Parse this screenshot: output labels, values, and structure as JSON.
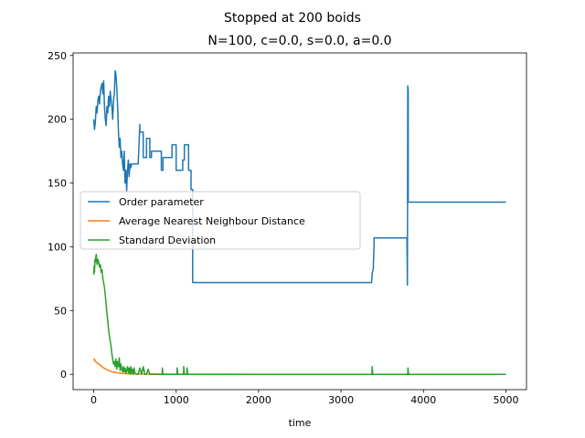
{
  "chart_data": {
    "type": "line",
    "title": "Stopped at 200 boids",
    "subtitle": "N=100, c=0.0, s=0.0, a=0.0",
    "xlabel": "time",
    "ylabel": "",
    "xlim": [
      -250,
      5250
    ],
    "ylim": [
      -12,
      252
    ],
    "xticks": [
      0,
      1000,
      2000,
      3000,
      4000,
      5000
    ],
    "yticks": [
      0,
      50,
      100,
      150,
      200,
      250
    ],
    "legend": {
      "position": "center-left"
    },
    "series": [
      {
        "name": "Order parameter",
        "color": "#1f77b4",
        "x": [
          0,
          10,
          20,
          30,
          40,
          50,
          60,
          70,
          80,
          90,
          100,
          110,
          120,
          130,
          140,
          150,
          160,
          170,
          180,
          190,
          200,
          210,
          220,
          230,
          240,
          250,
          260,
          270,
          280,
          290,
          300,
          310,
          320,
          330,
          340,
          350,
          360,
          370,
          380,
          390,
          400,
          410,
          420,
          430,
          440,
          450,
          460,
          480,
          500,
          520,
          540,
          560,
          560,
          600,
          600,
          640,
          640,
          680,
          680,
          700,
          700,
          800,
          820,
          820,
          840,
          840,
          950,
          950,
          1000,
          1000,
          1080,
          1080,
          1100,
          1100,
          1150,
          1150,
          1180,
          1180,
          1200,
          1200,
          3370,
          3380,
          3390,
          3400,
          3400,
          3800,
          3805,
          3810,
          3812,
          3815,
          3815,
          5000
        ],
        "y": [
          200,
          192,
          198,
          210,
          205,
          215,
          218,
          212,
          222,
          225,
          228,
          220,
          230,
          210,
          200,
          195,
          210,
          205,
          218,
          210,
          222,
          215,
          210,
          200,
          215,
          220,
          238,
          235,
          224,
          210,
          190,
          178,
          185,
          170,
          175,
          165,
          160,
          175,
          150,
          160,
          144,
          160,
          168,
          155,
          165,
          162,
          165,
          165,
          165,
          165,
          165,
          196,
          190,
          190,
          170,
          170,
          185,
          185,
          170,
          170,
          175,
          175,
          175,
          160,
          160,
          170,
          170,
          180,
          180,
          160,
          160,
          168,
          168,
          180,
          180,
          160,
          160,
          145,
          145,
          72,
          72,
          80,
          82,
          100,
          107,
          107,
          70,
          226,
          225,
          222,
          135,
          135
        ]
      },
      {
        "name": "Average Nearest Neighbour Distance",
        "color": "#ff7f0e",
        "x": [
          0,
          10,
          20,
          40,
          60,
          80,
          100,
          120,
          150,
          180,
          220,
          260,
          300,
          350,
          400,
          500,
          700,
          1000,
          2000,
          3000,
          4000,
          5000
        ],
        "y": [
          11,
          12,
          10,
          9,
          8,
          7,
          6,
          5,
          4,
          3,
          2,
          1.5,
          1,
          0.8,
          0.5,
          0.3,
          0.2,
          0.1,
          0,
          0,
          0,
          0
        ]
      },
      {
        "name": "Standard Deviation",
        "color": "#2ca02c",
        "x": [
          0,
          5,
          10,
          15,
          20,
          25,
          30,
          40,
          50,
          60,
          70,
          80,
          90,
          100,
          110,
          120,
          130,
          140,
          150,
          160,
          170,
          180,
          190,
          200,
          210,
          220,
          230,
          240,
          250,
          260,
          270,
          280,
          290,
          300,
          310,
          320,
          330,
          340,
          350,
          360,
          370,
          380,
          390,
          400,
          410,
          420,
          430,
          440,
          450,
          460,
          470,
          480,
          490,
          500,
          520,
          540,
          560,
          580,
          600,
          620,
          640,
          660,
          680,
          700,
          800,
          830,
          832,
          840,
          900,
          1000,
          1010,
          1012,
          1020,
          1080,
          1090,
          1092,
          1100,
          1130,
          1132,
          1140,
          3370,
          3375,
          3378,
          3385,
          3800,
          3810,
          3812,
          3820,
          5000
        ],
        "y": [
          78,
          85,
          80,
          90,
          88,
          92,
          94,
          86,
          90,
          88,
          84,
          86,
          80,
          82,
          75,
          72,
          68,
          62,
          55,
          48,
          42,
          35,
          30,
          26,
          22,
          16,
          12,
          8,
          10,
          6,
          12,
          4,
          10,
          6,
          13,
          3,
          8,
          4,
          2,
          6,
          2,
          5,
          1,
          3,
          6,
          1,
          5,
          0,
          6,
          1,
          4,
          0,
          5,
          1,
          0,
          0,
          5,
          0,
          6,
          0,
          0,
          4,
          0,
          0,
          0,
          0,
          5,
          0,
          0,
          0,
          0,
          5,
          0,
          0,
          0,
          6,
          0,
          0,
          5,
          0,
          0,
          0,
          6,
          0,
          0,
          0,
          5,
          0,
          0
        ]
      }
    ]
  }
}
